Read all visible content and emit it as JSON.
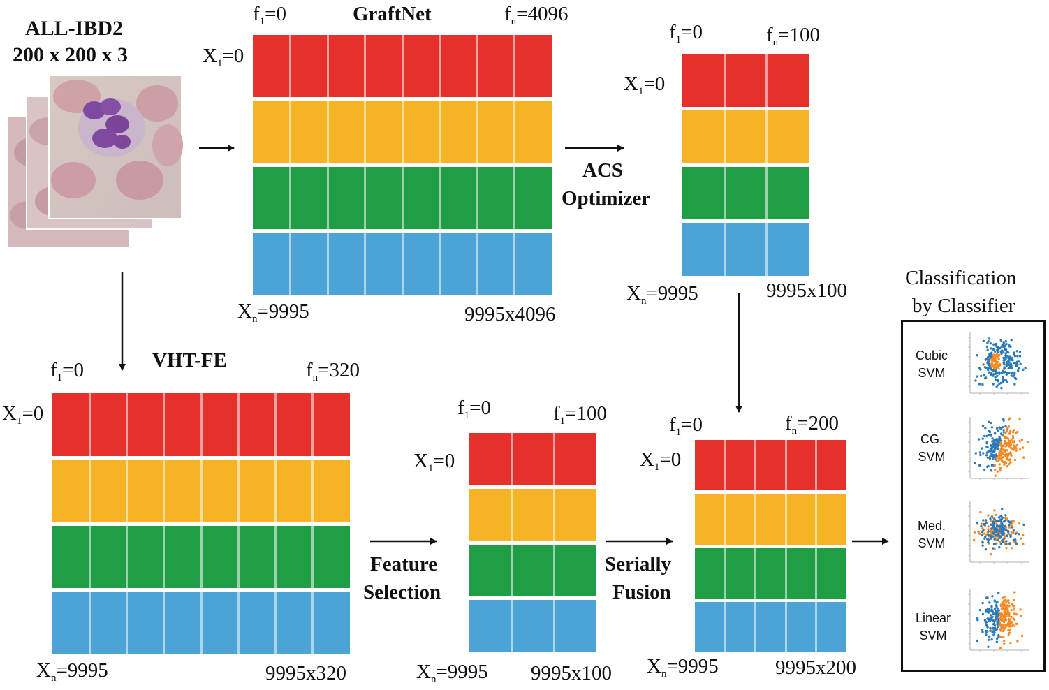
{
  "colors": {
    "red": "#e5302c",
    "yellow": "#f6b325",
    "green": "#1f9e45",
    "blue": "#4ba3d6",
    "blue_dots": "#2b7bbb",
    "orange_dots": "#f58a25"
  },
  "input": {
    "title": "ALL-IBD2",
    "dims": "200 x 200 x 3"
  },
  "graftnet": {
    "name": "GraftNet",
    "f1": "f",
    "f1_sub": "1",
    "f1_val": "=0",
    "fn": "f",
    "fn_sub": "n",
    "fn_val": "=4096",
    "x1": "X",
    "x1_sub": "1",
    "x1_val": "=0",
    "xn": "X",
    "xn_sub": "n",
    "xn_val": "=9995",
    "size": "9995x4096"
  },
  "acs": {
    "line1": "ACS",
    "line2": "Optimizer",
    "f1": "f",
    "f1_sub": "1",
    "f1_val": "=0",
    "fn": "f",
    "fn_sub": "n",
    "fn_val": "=100",
    "x1": "X",
    "x1_sub": "1",
    "x1_val": "=0",
    "xn": "X",
    "xn_sub": "n",
    "xn_val": "=9995",
    "size": "9995x100"
  },
  "vht": {
    "name": "VHT-FE",
    "f1": "f",
    "f1_sub": "1",
    "f1_val": "=0",
    "fn": "f",
    "fn_sub": "n",
    "fn_val": "=320",
    "x1": "X",
    "x1_sub": "1",
    "x1_val": "=0",
    "xn": "X",
    "xn_sub": "n",
    "xn_val": "=9995",
    "size": "9995x320"
  },
  "fs": {
    "line1": "Feature",
    "line2": "Selection",
    "f1": "f",
    "f1_sub": "1",
    "f1_val": "=0",
    "fn": "f",
    "fn_sub": "1",
    "fn_val": "=100",
    "x1": "X",
    "x1_sub": "1",
    "x1_val": "=0",
    "xn": "X",
    "xn_sub": "n",
    "xn_val": "=9995",
    "size": "9995x100"
  },
  "fusion": {
    "line1": "Serially",
    "line2": "Fusion",
    "f1": "f",
    "f1_sub": "1",
    "f1_val": "=0",
    "fn": "f",
    "fn_sub": "n",
    "fn_val": "=200",
    "x1": "X",
    "x1_sub": "1",
    "x1_val": "=0",
    "xn": "X",
    "xn_sub": "n",
    "xn_val": "=9995",
    "size": "9995x200"
  },
  "classification": {
    "title1": "Classification",
    "title2": "by Classifier",
    "classifiers": [
      {
        "line1": "Cubic",
        "line2": "SVM"
      },
      {
        "line1": "CG.",
        "line2": "SVM"
      },
      {
        "line1": "Med.",
        "line2": "SVM"
      },
      {
        "line1": "Linear",
        "line2": "SVM"
      }
    ]
  }
}
